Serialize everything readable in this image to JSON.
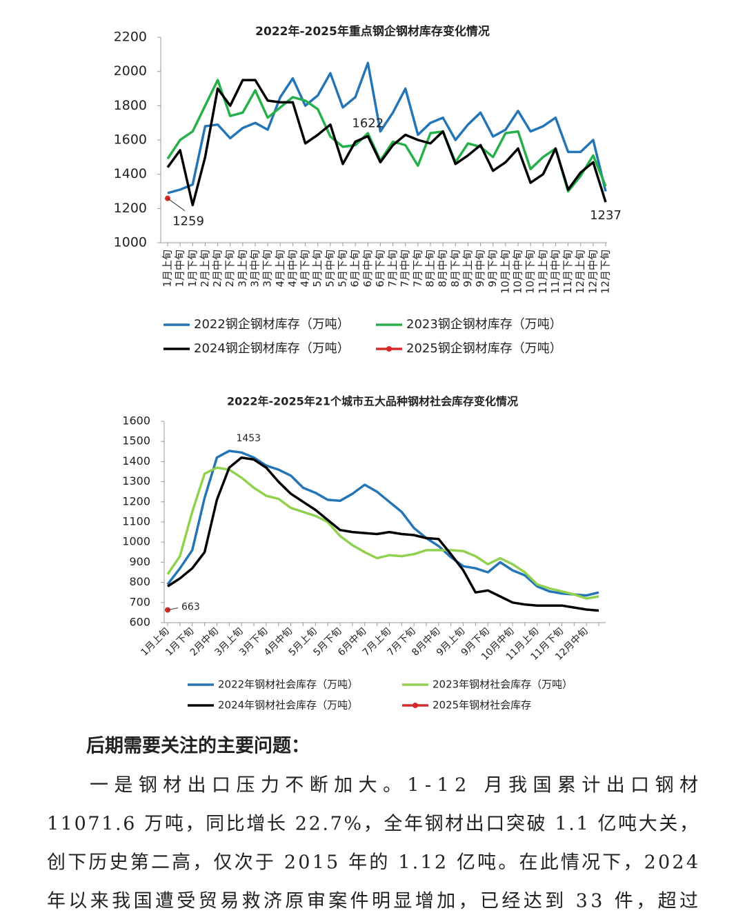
{
  "chart_data": [
    {
      "type": "line",
      "title": "2022年-2025年重点钢企钢材库存变化情况",
      "categories": [
        "1月上旬",
        "1月中旬",
        "1月下旬",
        "2月上旬",
        "2月中旬",
        "2月下旬",
        "3月上旬",
        "3月中旬",
        "3月下旬",
        "4月上旬",
        "4月中旬",
        "4月下旬",
        "5月上旬",
        "5月中旬",
        "5月下旬",
        "6月上旬",
        "6月中旬",
        "6月下旬",
        "7月上旬",
        "7月中旬",
        "7月下旬",
        "8月上旬",
        "8月中旬",
        "8月下旬",
        "9月上旬",
        "9月中旬",
        "9月下旬",
        "10月上旬",
        "10月中旬",
        "10月下旬",
        "11月上旬",
        "11月中旬",
        "11月下旬",
        "12月上旬",
        "12月中旬",
        "12月下旬"
      ],
      "ylim": [
        1000,
        2200
      ],
      "yticks": [
        1000,
        1200,
        1400,
        1600,
        1800,
        2000,
        2200
      ],
      "grid": false,
      "series": [
        {
          "name": "2022钢企钢材库存（万吨）",
          "color": "#2475b6",
          "values": [
            1290,
            1310,
            1340,
            1680,
            1690,
            1610,
            1670,
            1700,
            1660,
            1850,
            1960,
            1800,
            1860,
            1990,
            1790,
            1850,
            2050,
            1650,
            1760,
            1900,
            1630,
            1700,
            1730,
            1600,
            1690,
            1760,
            1620,
            1660,
            1770,
            1650,
            1680,
            1730,
            1530,
            1530,
            1600,
            1300
          ]
        },
        {
          "name": "2023钢企钢材库存（万吨）",
          "color": "#26b04a",
          "values": [
            1490,
            1600,
            1650,
            1800,
            1950,
            1740,
            1760,
            1890,
            1730,
            1790,
            1850,
            1830,
            1780,
            1620,
            1560,
            1570,
            1640,
            1480,
            1590,
            1570,
            1450,
            1640,
            1650,
            1470,
            1580,
            1560,
            1500,
            1640,
            1650,
            1430,
            1500,
            1550,
            1300,
            1390,
            1510,
            1330
          ]
        },
        {
          "name": "2024钢企钢材库存（万吨）",
          "color": "#000000",
          "values": [
            1440,
            1540,
            1220,
            1500,
            1900,
            1800,
            1950,
            1950,
            1830,
            1820,
            1820,
            1580,
            1630,
            1690,
            1460,
            1590,
            1622,
            1470,
            1570,
            1630,
            1600,
            1580,
            1650,
            1460,
            1510,
            1570,
            1420,
            1470,
            1550,
            1350,
            1400,
            1550,
            1310,
            1410,
            1470,
            1237
          ],
          "value_labels": [
            null,
            null,
            null,
            null,
            null,
            null,
            null,
            null,
            null,
            null,
            null,
            null,
            null,
            null,
            null,
            null,
            "1622",
            null,
            null,
            null,
            null,
            null,
            null,
            null,
            null,
            null,
            null,
            null,
            null,
            null,
            null,
            null,
            null,
            null,
            null,
            "1237"
          ]
        },
        {
          "name": "2025钢企钢材库存（万吨）",
          "color": "#d52a2a",
          "marker": true,
          "values": [
            1259,
            null,
            null,
            null,
            null,
            null,
            null,
            null,
            null,
            null,
            null,
            null,
            null,
            null,
            null,
            null,
            null,
            null,
            null,
            null,
            null,
            null,
            null,
            null,
            null,
            null,
            null,
            null,
            null,
            null,
            null,
            null,
            null,
            null,
            null,
            null
          ],
          "value_labels": [
            "1259",
            null,
            null,
            null,
            null,
            null,
            null,
            null,
            null,
            null,
            null,
            null,
            null,
            null,
            null,
            null,
            null,
            null,
            null,
            null,
            null,
            null,
            null,
            null,
            null,
            null,
            null,
            null,
            null,
            null,
            null,
            null,
            null,
            null,
            null,
            null
          ]
        }
      ]
    },
    {
      "type": "line",
      "title": "2022年-2025年21个城市五大品种钢材社会库存变化情况",
      "categories": [
        "1月上旬",
        null,
        "1月下旬",
        null,
        "2月中旬",
        null,
        "3月上旬",
        null,
        "3月下旬",
        null,
        "4月中旬",
        null,
        "5月上旬",
        null,
        "5月下旬",
        null,
        "6月中旬",
        null,
        "7月上旬",
        null,
        "7月下旬",
        null,
        "8月中旬",
        null,
        "9月上旬",
        null,
        "9月下旬",
        null,
        "10月中旬",
        null,
        "11月上旬",
        null,
        "11月下旬",
        null,
        "12月中旬",
        null
      ],
      "ylim": [
        600,
        1600
      ],
      "yticks": [
        600,
        700,
        800,
        900,
        1000,
        1100,
        1200,
        1300,
        1400,
        1500,
        1600
      ],
      "grid": false,
      "series": [
        {
          "name": "2022年钢材社会库存（万吨）",
          "color": "#2475b6",
          "values": [
            790,
            870,
            960,
            1220,
            1420,
            1453,
            1445,
            1420,
            1380,
            1360,
            1330,
            1270,
            1245,
            1210,
            1205,
            1240,
            1285,
            1250,
            1200,
            1150,
            1070,
            1020,
            980,
            925,
            880,
            870,
            850,
            900,
            860,
            835,
            780,
            755,
            745,
            740,
            735,
            750
          ],
          "value_labels": [
            null,
            null,
            null,
            null,
            null,
            "1453",
            null,
            null,
            null,
            null,
            null,
            null,
            null,
            null,
            null,
            null,
            null,
            null,
            null,
            null,
            null,
            null,
            null,
            null,
            null,
            null,
            null,
            null,
            null,
            null,
            null,
            null,
            null,
            null,
            null,
            null
          ]
        },
        {
          "name": "2023年钢材社会库存（万吨）",
          "color": "#92d050",
          "values": [
            840,
            930,
            1150,
            1340,
            1370,
            1360,
            1320,
            1270,
            1230,
            1215,
            1170,
            1150,
            1130,
            1100,
            1030,
            985,
            950,
            920,
            935,
            930,
            940,
            960,
            960,
            960,
            955,
            930,
            890,
            920,
            890,
            850,
            790,
            770,
            755,
            740,
            720,
            730
          ]
        },
        {
          "name": "2024年钢材社会库存（万吨）",
          "color": "#000000",
          "values": [
            780,
            820,
            870,
            950,
            1210,
            1370,
            1420,
            1410,
            1370,
            1300,
            1240,
            1200,
            1160,
            1110,
            1060,
            1050,
            1045,
            1040,
            1050,
            1040,
            1035,
            1020,
            1015,
            940,
            860,
            750,
            760,
            730,
            700,
            690,
            685,
            685,
            685,
            675,
            665,
            660
          ]
        },
        {
          "name": "2025年钢材社会库存",
          "color": "#d52a2a",
          "marker": true,
          "values": [
            663,
            null,
            null,
            null,
            null,
            null,
            null,
            null,
            null,
            null,
            null,
            null,
            null,
            null,
            null,
            null,
            null,
            null,
            null,
            null,
            null,
            null,
            null,
            null,
            null,
            null,
            null,
            null,
            null,
            null,
            null,
            null,
            null,
            null,
            null,
            null
          ],
          "value_labels": [
            "663",
            null,
            null,
            null,
            null,
            null,
            null,
            null,
            null,
            null,
            null,
            null,
            null,
            null,
            null,
            null,
            null,
            null,
            null,
            null,
            null,
            null,
            null,
            null,
            null,
            null,
            null,
            null,
            null,
            null,
            null,
            null,
            null,
            null,
            null,
            null
          ]
        }
      ]
    }
  ],
  "document": {
    "heading": "后期需要关注的主要问题：",
    "lines": [
      "一是钢材出口压力不断加大。1-12 月我国累计出口钢材",
      "11071.6 万吨，同比增长 22.7%，全年钢材出口突破 1.1 亿吨大关，",
      "创下历史第二高，仅次于 2015 年的 1.12 亿吨。在此情况下，2024",
      "年以来我国遭受贸易救济原审案件明显增加，已经达到 33 件，超过"
    ]
  }
}
